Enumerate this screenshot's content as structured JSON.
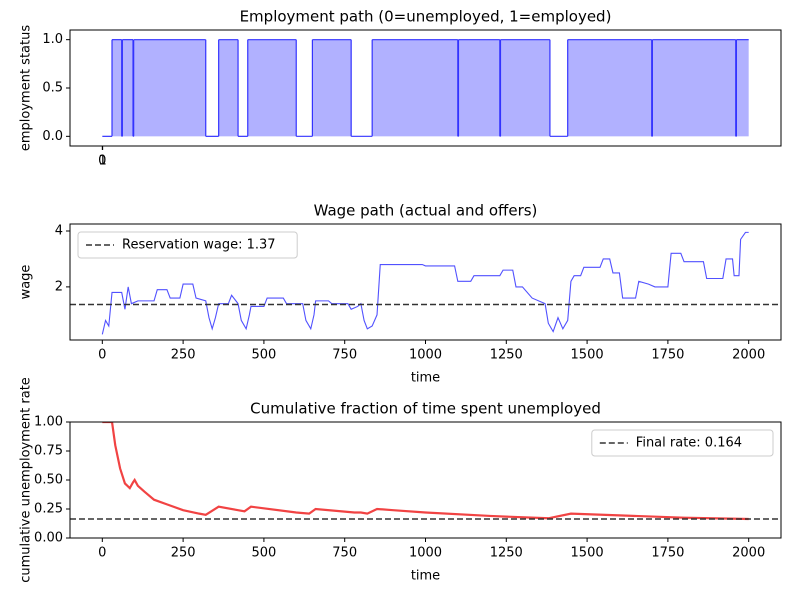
{
  "chart_data": [
    {
      "type": "step",
      "title": "Employment path (0=unemployed, 1=employed)",
      "ylabel": "employment status",
      "x": [
        0,
        30,
        60,
        62,
        95,
        97,
        320,
        360,
        420,
        450,
        600,
        650,
        770,
        835,
        1100,
        1102,
        1230,
        1232,
        1385,
        1440,
        1700,
        1702,
        1960,
        1962,
        2000
      ],
      "values": [
        0,
        1,
        0,
        1,
        0,
        1,
        0,
        1,
        0,
        1,
        0,
        1,
        0,
        1,
        0,
        1,
        0,
        1,
        0,
        1,
        0,
        1,
        0,
        1,
        1
      ],
      "color": "#3333ff",
      "xlim": [
        -100,
        2100
      ],
      "ylim": [
        -0.1,
        1.1
      ],
      "xticks": [
        0,
        1
      ],
      "yticks": [
        {
          "value": 0,
          "label": "0.0"
        },
        {
          "value": 0.5,
          "label": "0.5"
        },
        {
          "value": 1,
          "label": "1.0"
        }
      ]
    },
    {
      "type": "line",
      "title": "Wage path (actual and offers)",
      "ylabel": "wage",
      "xlabel": "time",
      "x": [
        0,
        10,
        20,
        30,
        60,
        70,
        80,
        90,
        110,
        160,
        170,
        200,
        210,
        240,
        250,
        280,
        290,
        320,
        330,
        340,
        350,
        360,
        390,
        400,
        420,
        430,
        445,
        455,
        460,
        500,
        510,
        560,
        570,
        620,
        630,
        645,
        655,
        660,
        700,
        710,
        760,
        770,
        790,
        800,
        810,
        820,
        835,
        850,
        860,
        990,
        1000,
        1090,
        1100,
        1140,
        1150,
        1230,
        1240,
        1270,
        1280,
        1300,
        1330,
        1370,
        1380,
        1395,
        1410,
        1425,
        1440,
        1450,
        1460,
        1480,
        1490,
        1540,
        1550,
        1570,
        1580,
        1600,
        1610,
        1650,
        1660,
        1690,
        1710,
        1750,
        1760,
        1790,
        1800,
        1860,
        1870,
        1920,
        1930,
        1950,
        1955,
        1970,
        1975,
        1990,
        2000
      ],
      "values": [
        0.3,
        0.8,
        0.6,
        1.8,
        1.8,
        1.2,
        2.0,
        1.4,
        1.5,
        1.5,
        1.9,
        1.9,
        1.6,
        1.6,
        2.1,
        2.1,
        1.6,
        1.5,
        0.9,
        0.5,
        0.9,
        1.4,
        1.4,
        1.7,
        1.4,
        0.8,
        0.5,
        1.0,
        1.3,
        1.3,
        1.6,
        1.6,
        1.4,
        1.4,
        0.8,
        0.5,
        1.0,
        1.5,
        1.5,
        1.4,
        1.4,
        1.2,
        1.3,
        1.4,
        0.8,
        0.5,
        0.6,
        1.0,
        2.8,
        2.8,
        2.75,
        2.75,
        2.2,
        2.2,
        2.4,
        2.4,
        2.6,
        2.6,
        2.0,
        2.0,
        1.6,
        1.4,
        0.7,
        0.4,
        0.9,
        0.5,
        0.8,
        2.2,
        2.4,
        2.4,
        2.7,
        2.7,
        3.0,
        3.0,
        2.5,
        2.5,
        1.6,
        1.6,
        2.2,
        2.1,
        2.0,
        2.0,
        3.2,
        3.2,
        2.9,
        2.9,
        2.3,
        2.3,
        3.0,
        3.0,
        2.4,
        2.4,
        3.7,
        3.95,
        3.95
      ],
      "color": "#3333ff",
      "xlim": [
        -100,
        2100
      ],
      "ylim": [
        0.1,
        4.25
      ],
      "xticks": [
        0,
        250,
        500,
        750,
        1000,
        1250,
        1500,
        1750,
        2000
      ],
      "yticks": [
        2,
        4
      ],
      "hline": {
        "value": 1.37,
        "label": "Reservation wage: 1.37"
      },
      "legend": "upper-left"
    },
    {
      "type": "line",
      "title": "Cumulative fraction of time spent unemployed",
      "ylabel": "cumulative unemployment rate",
      "xlabel": "time",
      "x": [
        0,
        30,
        40,
        55,
        70,
        85,
        95,
        100,
        110,
        130,
        160,
        200,
        250,
        300,
        320,
        360,
        420,
        440,
        460,
        600,
        640,
        660,
        780,
        800,
        820,
        850,
        900,
        1000,
        1200,
        1380,
        1450,
        1600,
        1800,
        2000
      ],
      "values": [
        1,
        1,
        0.8,
        0.6,
        0.47,
        0.43,
        0.48,
        0.5,
        0.45,
        0.4,
        0.33,
        0.29,
        0.24,
        0.21,
        0.2,
        0.27,
        0.24,
        0.23,
        0.27,
        0.22,
        0.21,
        0.25,
        0.22,
        0.22,
        0.21,
        0.25,
        0.24,
        0.22,
        0.19,
        0.17,
        0.21,
        0.195,
        0.175,
        0.164
      ],
      "color": "#ee2222",
      "xlim": [
        -100,
        2100
      ],
      "ylim": [
        0,
        1
      ],
      "xticks": [
        0,
        250,
        500,
        750,
        1000,
        1250,
        1500,
        1750,
        2000
      ],
      "yticks": [
        {
          "value": 0,
          "label": "0.00"
        },
        {
          "value": 0.25,
          "label": "0.25"
        },
        {
          "value": 0.5,
          "label": "0.50"
        },
        {
          "value": 0.75,
          "label": "0.75"
        },
        {
          "value": 1,
          "label": "1.00"
        }
      ],
      "hline": {
        "value": 0.164,
        "label": "Final rate: 0.164"
      },
      "legend": "upper-right"
    }
  ]
}
